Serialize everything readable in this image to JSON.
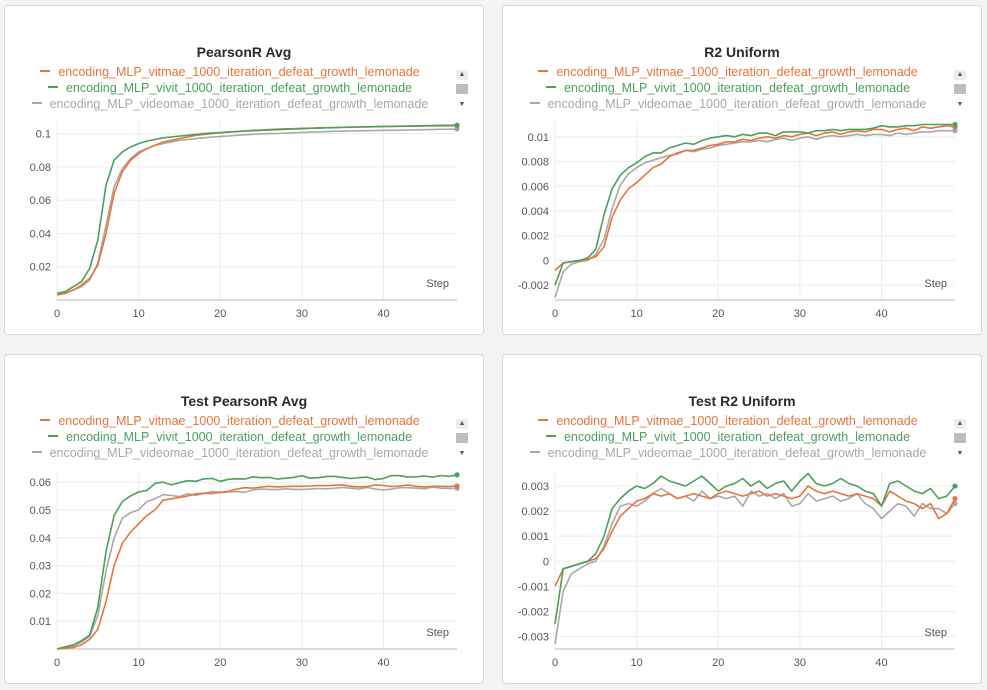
{
  "colors": {
    "vitmae": "#e8743b",
    "vivit": "#4aa05c",
    "videomae": "#a8a8a8"
  },
  "legend": [
    {
      "key": "vitmae",
      "label": "encoding_MLP_vitmae_1000_iteration_defeat_growth_lemonade"
    },
    {
      "key": "vivit",
      "label": "encoding_MLP_vivit_1000_iteration_defeat_growth_lemonade"
    },
    {
      "key": "videomae",
      "label": "encoding_MLP_videomae_1000_iteration_defeat_growth_lemonade"
    }
  ],
  "chart_data": [
    {
      "type": "line",
      "title": "PearsonR Avg",
      "xlabel": "Step",
      "xlim": [
        0,
        49
      ],
      "ylim": [
        0.0,
        0.107
      ],
      "xticks": [
        0,
        10,
        20,
        30,
        40
      ],
      "yticks": [
        0.02,
        0.04,
        0.06,
        0.08,
        0.1
      ],
      "ytick_labels": [
        "0.02",
        "0.04",
        "0.06",
        "0.08",
        "0.1"
      ],
      "x": [
        0,
        1,
        2,
        3,
        4,
        5,
        6,
        7,
        8,
        9,
        10,
        11,
        12,
        13,
        14,
        15,
        16,
        17,
        18,
        19,
        20,
        21,
        22,
        23,
        24,
        25,
        26,
        27,
        28,
        29,
        30,
        31,
        32,
        33,
        34,
        35,
        36,
        37,
        38,
        39,
        40,
        41,
        42,
        43,
        44,
        45,
        46,
        47,
        48,
        49
      ],
      "series": [
        {
          "name": "encoding_MLP_vitmae_1000_iteration_defeat_growth_lemonade",
          "color_key": "vitmae",
          "values": [
            0.003,
            0.004,
            0.006,
            0.009,
            0.013,
            0.021,
            0.04,
            0.064,
            0.077,
            0.084,
            0.088,
            0.091,
            0.093,
            0.095,
            0.096,
            0.097,
            0.098,
            0.099,
            0.0995,
            0.1,
            0.1005,
            0.101,
            0.1013,
            0.1016,
            0.102,
            0.1022,
            0.1025,
            0.1027,
            0.1029,
            0.103,
            0.1032,
            0.1033,
            0.1035,
            0.1036,
            0.1037,
            0.1038,
            0.1039,
            0.104,
            0.1041,
            0.1042,
            0.1043,
            0.1043,
            0.1044,
            0.1045,
            0.1045,
            0.1046,
            0.1046,
            0.1047,
            0.1047,
            0.1048
          ]
        },
        {
          "name": "encoding_MLP_vivit_1000_iteration_defeat_growth_lemonade",
          "color_key": "vivit",
          "values": [
            0.004,
            0.005,
            0.008,
            0.011,
            0.019,
            0.036,
            0.069,
            0.084,
            0.089,
            0.092,
            0.094,
            0.0955,
            0.0965,
            0.0975,
            0.098,
            0.0985,
            0.099,
            0.0995,
            0.1,
            0.1003,
            0.1006,
            0.1009,
            0.1012,
            0.1015,
            0.1018,
            0.102,
            0.1022,
            0.1024,
            0.1026,
            0.1028,
            0.103,
            0.1032,
            0.1033,
            0.1035,
            0.1036,
            0.1038,
            0.1039,
            0.104,
            0.1041,
            0.1042,
            0.1043,
            0.1044,
            0.1045,
            0.1046,
            0.1047,
            0.1048,
            0.1049,
            0.105,
            0.105,
            0.1051
          ]
        },
        {
          "name": "encoding_MLP_videomae_1000_iteration_defeat_growth_lemonade",
          "color_key": "videomae",
          "values": [
            0.003,
            0.004,
            0.006,
            0.008,
            0.012,
            0.022,
            0.045,
            0.068,
            0.079,
            0.085,
            0.089,
            0.091,
            0.093,
            0.094,
            0.095,
            0.096,
            0.0965,
            0.097,
            0.0975,
            0.098,
            0.0983,
            0.0986,
            0.099,
            0.0993,
            0.0996,
            0.0998,
            0.1,
            0.1001,
            0.1003,
            0.1005,
            0.1007,
            0.1009,
            0.101,
            0.1012,
            0.1014,
            0.1015,
            0.1016,
            0.1017,
            0.1018,
            0.1019,
            0.102,
            0.102,
            0.1021,
            0.1022,
            0.1023,
            0.1024,
            0.1025,
            0.1026,
            0.1027,
            0.1028
          ]
        }
      ]
    },
    {
      "type": "line",
      "title": "R2 Uniform",
      "xlabel": "Step",
      "xlim": [
        0,
        49
      ],
      "ylim": [
        -0.0032,
        0.0112
      ],
      "xticks": [
        0,
        10,
        20,
        30,
        40
      ],
      "yticks": [
        -0.002,
        0,
        0.002,
        0.004,
        0.006,
        0.008,
        0.01
      ],
      "ytick_labels": [
        "-0.002",
        "0",
        "0.002",
        "0.004",
        "0.006",
        "0.008",
        "0.01"
      ],
      "x": [
        0,
        1,
        2,
        3,
        4,
        5,
        6,
        7,
        8,
        9,
        10,
        11,
        12,
        13,
        14,
        15,
        16,
        17,
        18,
        19,
        20,
        21,
        22,
        23,
        24,
        25,
        26,
        27,
        28,
        29,
        30,
        31,
        32,
        33,
        34,
        35,
        36,
        37,
        38,
        39,
        40,
        41,
        42,
        43,
        44,
        45,
        46,
        47,
        48,
        49
      ],
      "series": [
        {
          "name": "encoding_MLP_vitmae_1000_iteration_defeat_growth_lemonade",
          "color_key": "vitmae",
          "values": [
            -0.0008,
            -0.0002,
            -0.0001,
            0.0,
            0.0001,
            0.0003,
            0.0011,
            0.0035,
            0.0049,
            0.0058,
            0.0063,
            0.0069,
            0.0075,
            0.0078,
            0.0084,
            0.0087,
            0.0089,
            0.0089,
            0.0091,
            0.0093,
            0.0094,
            0.0096,
            0.0096,
            0.0098,
            0.0097,
            0.0099,
            0.01,
            0.0099,
            0.0101,
            0.01,
            0.0102,
            0.0103,
            0.0101,
            0.0103,
            0.0104,
            0.0102,
            0.0104,
            0.0105,
            0.0104,
            0.0106,
            0.0106,
            0.0104,
            0.0106,
            0.0107,
            0.0105,
            0.0108,
            0.0107,
            0.0108,
            0.0109,
            0.0108
          ]
        },
        {
          "name": "encoding_MLP_vivit_1000_iteration_defeat_growth_lemonade",
          "color_key": "vivit",
          "values": [
            -0.002,
            -0.0002,
            -0.0001,
            0.0,
            0.0002,
            0.0009,
            0.0037,
            0.0058,
            0.0069,
            0.0075,
            0.0079,
            0.0084,
            0.0087,
            0.0087,
            0.0091,
            0.0093,
            0.0095,
            0.0094,
            0.0097,
            0.0099,
            0.01,
            0.0101,
            0.01,
            0.0102,
            0.0101,
            0.0103,
            0.0103,
            0.0101,
            0.0104,
            0.0104,
            0.0104,
            0.0103,
            0.0105,
            0.0105,
            0.0106,
            0.0105,
            0.0106,
            0.0106,
            0.0106,
            0.0107,
            0.0109,
            0.0108,
            0.0108,
            0.0109,
            0.0109,
            0.011,
            0.011,
            0.011,
            0.011,
            0.011
          ]
        },
        {
          "name": "encoding_MLP_videomae_1000_iteration_defeat_growth_lemonade",
          "color_key": "videomae",
          "values": [
            -0.003,
            -0.0009,
            -0.0003,
            -0.0001,
            0.0,
            0.0005,
            0.0017,
            0.0042,
            0.0061,
            0.007,
            0.0075,
            0.0079,
            0.0081,
            0.0083,
            0.0085,
            0.0086,
            0.0089,
            0.0088,
            0.009,
            0.0091,
            0.0093,
            0.0094,
            0.0095,
            0.0096,
            0.0096,
            0.0097,
            0.0096,
            0.0098,
            0.0099,
            0.0097,
            0.0099,
            0.01,
            0.0098,
            0.01,
            0.0101,
            0.01,
            0.0101,
            0.0102,
            0.0101,
            0.0102,
            0.0102,
            0.0101,
            0.0103,
            0.0102,
            0.0103,
            0.0104,
            0.0104,
            0.0105,
            0.0105,
            0.0105
          ]
        }
      ]
    },
    {
      "type": "line",
      "title": "Test PearsonR Avg",
      "xlabel": "Step",
      "xlim": [
        0,
        49
      ],
      "ylim": [
        0.0,
        0.064
      ],
      "xticks": [
        0,
        10,
        20,
        30,
        40
      ],
      "yticks": [
        0.01,
        0.02,
        0.03,
        0.04,
        0.05,
        0.06
      ],
      "ytick_labels": [
        "0.01",
        "0.02",
        "0.03",
        "0.04",
        "0.05",
        "0.06"
      ],
      "x": [
        0,
        1,
        2,
        3,
        4,
        5,
        6,
        7,
        8,
        9,
        10,
        11,
        12,
        13,
        14,
        15,
        16,
        17,
        18,
        19,
        20,
        21,
        22,
        23,
        24,
        25,
        26,
        27,
        28,
        29,
        30,
        31,
        32,
        33,
        34,
        35,
        36,
        37,
        38,
        39,
        40,
        41,
        42,
        43,
        44,
        45,
        46,
        47,
        48,
        49
      ],
      "series": [
        {
          "name": "encoding_MLP_vitmae_1000_iteration_defeat_growth_lemonade",
          "color_key": "vitmae",
          "values": [
            0.0,
            0.0003,
            0.0005,
            0.0015,
            0.0035,
            0.007,
            0.017,
            0.03,
            0.038,
            0.042,
            0.045,
            0.048,
            0.05,
            0.0535,
            0.054,
            0.0545,
            0.055,
            0.0558,
            0.056,
            0.0565,
            0.0563,
            0.0567,
            0.0575,
            0.058,
            0.0578,
            0.0582,
            0.0585,
            0.0583,
            0.0584,
            0.0585,
            0.0585,
            0.0586,
            0.0588,
            0.0587,
            0.0589,
            0.059,
            0.0585,
            0.0583,
            0.0584,
            0.059,
            0.0588,
            0.0584,
            0.0586,
            0.059,
            0.0585,
            0.0583,
            0.0585,
            0.0585,
            0.0584,
            0.0586
          ]
        },
        {
          "name": "encoding_MLP_vivit_1000_iteration_defeat_growth_lemonade",
          "color_key": "vivit",
          "values": [
            0.0,
            0.0008,
            0.0015,
            0.003,
            0.005,
            0.015,
            0.035,
            0.048,
            0.053,
            0.055,
            0.0565,
            0.057,
            0.0595,
            0.06,
            0.059,
            0.0598,
            0.0605,
            0.0603,
            0.0612,
            0.0613,
            0.0603,
            0.061,
            0.0612,
            0.0611,
            0.0619,
            0.0616,
            0.0617,
            0.0611,
            0.0614,
            0.0617,
            0.0623,
            0.0614,
            0.0616,
            0.062,
            0.0621,
            0.0617,
            0.0613,
            0.0616,
            0.0618,
            0.0609,
            0.0613,
            0.0624,
            0.0623,
            0.0618,
            0.0619,
            0.0622,
            0.0618,
            0.0624,
            0.0621,
            0.0626
          ]
        },
        {
          "name": "encoding_MLP_videomae_1000_iteration_defeat_growth_lemonade",
          "color_key": "videomae",
          "values": [
            0.0,
            0.0007,
            0.001,
            0.0025,
            0.0045,
            0.012,
            0.028,
            0.04,
            0.047,
            0.049,
            0.05,
            0.053,
            0.054,
            0.0555,
            0.0552,
            0.0548,
            0.0558,
            0.0552,
            0.056,
            0.0558,
            0.0563,
            0.0565,
            0.0566,
            0.0563,
            0.0572,
            0.0575,
            0.0574,
            0.0573,
            0.0576,
            0.0574,
            0.0574,
            0.0575,
            0.0577,
            0.0576,
            0.0578,
            0.0581,
            0.0578,
            0.0575,
            0.0581,
            0.0575,
            0.0572,
            0.0575,
            0.058,
            0.058,
            0.0578,
            0.0576,
            0.0582,
            0.0578,
            0.0577,
            0.0578
          ]
        }
      ]
    },
    {
      "type": "line",
      "title": "Test R2 Uniform",
      "xlabel": "Step",
      "xlim": [
        0,
        49
      ],
      "ylim": [
        -0.0035,
        0.0036
      ],
      "xticks": [
        0,
        10,
        20,
        30,
        40
      ],
      "yticks": [
        -0.003,
        -0.002,
        -0.001,
        0,
        0.001,
        0.002,
        0.003
      ],
      "ytick_labels": [
        "-0.003",
        "-0.002",
        "-0.001",
        "0",
        "0.001",
        "0.002",
        "0.003"
      ],
      "x": [
        0,
        1,
        2,
        3,
        4,
        5,
        6,
        7,
        8,
        9,
        10,
        11,
        12,
        13,
        14,
        15,
        16,
        17,
        18,
        19,
        20,
        21,
        22,
        23,
        24,
        25,
        26,
        27,
        28,
        29,
        30,
        31,
        32,
        33,
        34,
        35,
        36,
        37,
        38,
        39,
        40,
        41,
        42,
        43,
        44,
        45,
        46,
        47,
        48,
        49
      ],
      "series": [
        {
          "name": "encoding_MLP_vitmae_1000_iteration_defeat_growth_lemonade",
          "color_key": "vitmae",
          "values": [
            -0.001,
            -0.0003,
            -0.0002,
            -0.0001,
            0.0,
            0.0001,
            0.0005,
            0.0012,
            0.0018,
            0.0021,
            0.0024,
            0.0025,
            0.0027,
            0.0026,
            0.0027,
            0.0025,
            0.0026,
            0.0027,
            0.0026,
            0.0025,
            0.0027,
            0.0028,
            0.0027,
            0.0026,
            0.0027,
            0.0028,
            0.0026,
            0.0027,
            0.0026,
            0.0025,
            0.0026,
            0.003,
            0.0028,
            0.0027,
            0.0028,
            0.0027,
            0.0026,
            0.0027,
            0.0026,
            0.0025,
            0.0022,
            0.0028,
            0.0026,
            0.0024,
            0.0023,
            0.0021,
            0.0023,
            0.0017,
            0.0019,
            0.0025
          ]
        },
        {
          "name": "encoding_MLP_vivit_1000_iteration_defeat_growth_lemonade",
          "color_key": "vivit",
          "values": [
            -0.0025,
            -0.0003,
            -0.0002,
            -0.0001,
            0.0,
            0.0003,
            0.001,
            0.0021,
            0.0025,
            0.0028,
            0.003,
            0.0029,
            0.0031,
            0.0034,
            0.0032,
            0.0031,
            0.003,
            0.0032,
            0.0034,
            0.0031,
            0.0028,
            0.003,
            0.0031,
            0.0033,
            0.003,
            0.0032,
            0.0029,
            0.0031,
            0.0032,
            0.0028,
            0.0032,
            0.0035,
            0.0031,
            0.003,
            0.0031,
            0.0033,
            0.0031,
            0.003,
            0.0028,
            0.0027,
            0.0022,
            0.0031,
            0.0032,
            0.003,
            0.0028,
            0.0027,
            0.0029,
            0.0025,
            0.0026,
            0.003
          ]
        },
        {
          "name": "encoding_MLP_videomae_1000_iteration_defeat_growth_lemonade",
          "color_key": "videomae",
          "values": [
            -0.0033,
            -0.0012,
            -0.0005,
            -0.0003,
            -0.0001,
            0.0,
            0.0006,
            0.0015,
            0.0022,
            0.0023,
            0.0022,
            0.0024,
            0.0027,
            0.0029,
            0.0027,
            0.0025,
            0.0026,
            0.0024,
            0.0028,
            0.0025,
            0.0026,
            0.0025,
            0.0026,
            0.0022,
            0.0028,
            0.0026,
            0.0027,
            0.0025,
            0.0027,
            0.0022,
            0.0023,
            0.0027,
            0.0024,
            0.0025,
            0.0026,
            0.0024,
            0.0025,
            0.0027,
            0.0023,
            0.0021,
            0.0017,
            0.002,
            0.0023,
            0.0022,
            0.0018,
            0.0023,
            0.0021,
            0.0021,
            0.0019,
            0.0023
          ]
        }
      ]
    }
  ]
}
